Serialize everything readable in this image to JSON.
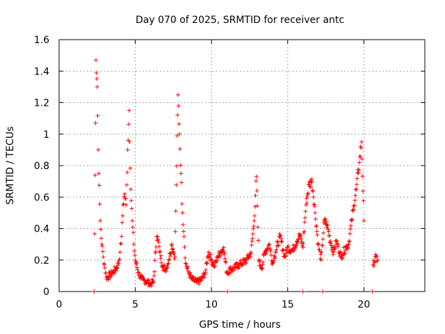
{
  "chart_data": {
    "type": "scatter",
    "title": "Day 070 of 2025, SRMTID for receiver antc",
    "xlabel": "GPS time / hours",
    "ylabel": "SRMTID / TECUs",
    "xlim": [
      0,
      24
    ],
    "ylim": [
      0,
      1.6
    ],
    "xticks": [
      0,
      5,
      10,
      15,
      20
    ],
    "yticks": [
      0,
      0.2,
      0.4,
      0.6,
      0.8,
      1,
      1.2,
      1.4,
      1.6
    ],
    "ytick_labels": [
      "0",
      "0.2",
      "0.4",
      "0.6",
      "0.8",
      "1",
      "1.2",
      "1.4",
      "1.6"
    ],
    "grid": true,
    "marker": "+",
    "color": "#ff0000",
    "anchors": [
      [
        2.3,
        0.0
      ],
      [
        2.42,
        1.47
      ],
      [
        2.5,
        1.3
      ],
      [
        2.6,
        0.75
      ],
      [
        2.7,
        0.45
      ],
      [
        2.8,
        0.3
      ],
      [
        2.9,
        0.22
      ],
      [
        3.0,
        0.15
      ],
      [
        3.1,
        0.09
      ],
      [
        3.3,
        0.1
      ],
      [
        3.5,
        0.12
      ],
      [
        3.7,
        0.14
      ],
      [
        3.9,
        0.18
      ],
      [
        4.0,
        0.25
      ],
      [
        4.1,
        0.35
      ],
      [
        4.2,
        0.55
      ],
      [
        4.3,
        0.62
      ],
      [
        4.4,
        0.55
      ],
      [
        4.5,
        0.9
      ],
      [
        4.6,
        1.15
      ],
      [
        4.7,
        0.65
      ],
      [
        4.8,
        0.45
      ],
      [
        4.9,
        0.3
      ],
      [
        5.0,
        0.2
      ],
      [
        5.2,
        0.12
      ],
      [
        5.4,
        0.08
      ],
      [
        5.6,
        0.07
      ],
      [
        5.8,
        0.06
      ],
      [
        6.0,
        0.05
      ],
      [
        6.2,
        0.06
      ],
      [
        6.4,
        0.35
      ],
      [
        6.5,
        0.33
      ],
      [
        6.6,
        0.25
      ],
      [
        6.8,
        0.16
      ],
      [
        7.0,
        0.14
      ],
      [
        7.2,
        0.2
      ],
      [
        7.4,
        0.3
      ],
      [
        7.6,
        0.22
      ],
      [
        7.8,
        1.25
      ],
      [
        7.9,
        1.0
      ],
      [
        8.0,
        0.75
      ],
      [
        8.1,
        0.5
      ],
      [
        8.2,
        0.35
      ],
      [
        8.3,
        0.18
      ],
      [
        8.5,
        0.12
      ],
      [
        8.7,
        0.08
      ],
      [
        9.0,
        0.06
      ],
      [
        9.3,
        0.07
      ],
      [
        9.6,
        0.12
      ],
      [
        9.8,
        0.25
      ],
      [
        10.0,
        0.2
      ],
      [
        10.2,
        0.16
      ],
      [
        10.4,
        0.22
      ],
      [
        10.6,
        0.25
      ],
      [
        10.8,
        0.28
      ],
      [
        11.0,
        0.12
      ],
      [
        11.2,
        0.14
      ],
      [
        11.5,
        0.15
      ],
      [
        11.8,
        0.17
      ],
      [
        12.0,
        0.18
      ],
      [
        12.3,
        0.2
      ],
      [
        12.6,
        0.25
      ],
      [
        12.8,
        0.45
      ],
      [
        12.95,
        0.73
      ],
      [
        13.1,
        0.2
      ],
      [
        13.3,
        0.15
      ],
      [
        13.5,
        0.25
      ],
      [
        13.8,
        0.3
      ],
      [
        14.0,
        0.18
      ],
      [
        14.2,
        0.25
      ],
      [
        14.5,
        0.35
      ],
      [
        14.8,
        0.22
      ],
      [
        15.0,
        0.28
      ],
      [
        15.3,
        0.26
      ],
      [
        15.6,
        0.32
      ],
      [
        15.8,
        0.36
      ],
      [
        16.0,
        0.28
      ],
      [
        16.2,
        0.55
      ],
      [
        16.4,
        0.68
      ],
      [
        16.6,
        0.7
      ],
      [
        16.8,
        0.5
      ],
      [
        17.0,
        0.3
      ],
      [
        17.2,
        0.2
      ],
      [
        17.4,
        0.45
      ],
      [
        17.6,
        0.42
      ],
      [
        17.8,
        0.32
      ],
      [
        18.0,
        0.25
      ],
      [
        18.2,
        0.32
      ],
      [
        18.5,
        0.22
      ],
      [
        18.8,
        0.28
      ],
      [
        19.0,
        0.3
      ],
      [
        19.2,
        0.45
      ],
      [
        19.5,
        0.65
      ],
      [
        19.7,
        0.82
      ],
      [
        19.85,
        0.95
      ],
      [
        20.0,
        0.45
      ],
      [
        20.6,
        0.17
      ],
      [
        20.8,
        0.22
      ],
      [
        20.9,
        0.2
      ]
    ]
  }
}
